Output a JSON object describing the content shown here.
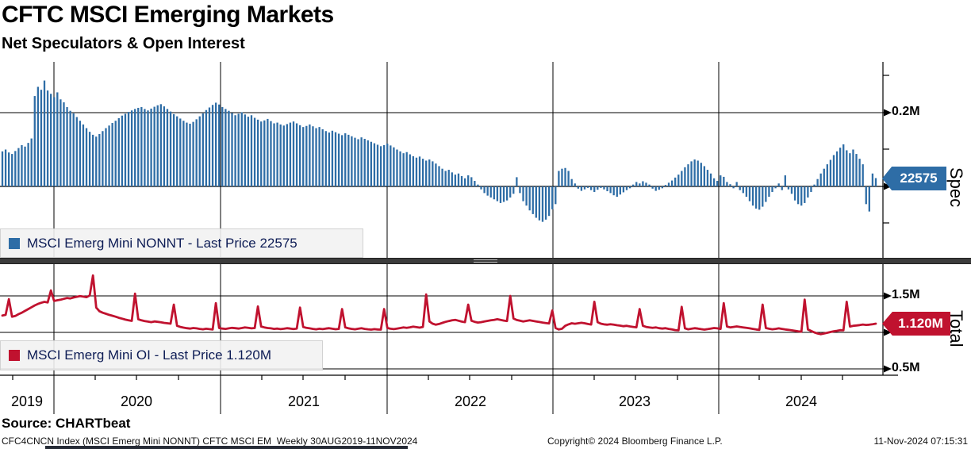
{
  "title": "CFTC MSCI Emerging Markets",
  "subtitle": "Net Speculators & Open Interest",
  "source_line": "Source: CHARTbeat",
  "footer": {
    "left": "CFC4CNCN Index (MSCI Emerg Mini NONNT) CFTC MSCI EM  Weekly 30AUG2019-11NOV2024",
    "center": "Copyright© 2024 Bloomberg Finance L.P.",
    "right": "11-Nov-2024 07:15:31"
  },
  "top_panel": {
    "legend": "MSCI Emerg Mini NONNT - Last Price 22575",
    "axis_label": "Spec",
    "last_price_tag": "22575",
    "last_price_value": 22575,
    "y_ticks": [
      {
        "label": "0.2M",
        "value_k": 200
      },
      {
        "label": "0",
        "value_k": 0
      }
    ]
  },
  "bottom_panel": {
    "legend": "MSCI Emerg Mini OI - Last Price 1.120M",
    "axis_label": "Total",
    "last_price_tag": "1.120M",
    "last_price_value": 1120000,
    "y_ticks": [
      {
        "label": "1.5M",
        "value_k": 1500
      },
      {
        "label": "1M",
        "value_k": 1000
      },
      {
        "label": "0.5M",
        "value_k": 500
      }
    ]
  },
  "x_axis": {
    "year_labels": [
      "2019",
      "2020",
      "2021",
      "2022",
      "2023",
      "2024"
    ],
    "range": "30AUG2019 - 11NOV2024",
    "frequency": "weekly"
  },
  "chart_data": [
    {
      "type": "bar",
      "name": "MSCI Emerg Mini NONNT",
      "color": "#2E6DA6",
      "unit": "contracts, thousands",
      "x_start": "2019-08-30",
      "x_end": "2024-11-11",
      "frequency": "weekly",
      "ylim_k": [
        -190,
        335
      ],
      "gridlines_k": [
        200,
        0
      ],
      "last_value_k": 22.575,
      "values_k": [
        95,
        100,
        92,
        88,
        96,
        104,
        112,
        108,
        118,
        130,
        245,
        270,
        262,
        287,
        260,
        251,
        242,
        255,
        236,
        228,
        215,
        205,
        198,
        188,
        178,
        168,
        158,
        148,
        140,
        135,
        142,
        150,
        158,
        165,
        172,
        178,
        185,
        192,
        197,
        202,
        206,
        210,
        213,
        215,
        210,
        206,
        211,
        216,
        220,
        223,
        217,
        210,
        203,
        196,
        190,
        184,
        178,
        173,
        170,
        175,
        182,
        190,
        198,
        207,
        214,
        221,
        227,
        222,
        215,
        210,
        205,
        199,
        193,
        197,
        201,
        195,
        189,
        193,
        186,
        181,
        176,
        179,
        183,
        177,
        171,
        173,
        168,
        165,
        169,
        173,
        176,
        171,
        166,
        161,
        164,
        168,
        163,
        158,
        161,
        155,
        150,
        146,
        151,
        147,
        143,
        139,
        144,
        140,
        136,
        132,
        128,
        133,
        129,
        125,
        121,
        117,
        113,
        109,
        112,
        116,
        111,
        106,
        100,
        95,
        90,
        93,
        87,
        82,
        78,
        81,
        75,
        70,
        73,
        68,
        62,
        55,
        48,
        42,
        45,
        38,
        32,
        35,
        28,
        22,
        30,
        25,
        15,
        5,
        -8,
        -18,
        -25,
        -30,
        -35,
        -40,
        -45,
        -42,
        -38,
        -30,
        -20,
        25,
        -18,
        -40,
        -52,
        -65,
        -75,
        -85,
        -92,
        -96,
        -90,
        -80,
        -62,
        -48,
        42,
        48,
        50,
        42,
        20,
        8,
        -6,
        -12,
        -8,
        -4,
        -10,
        -15,
        -9,
        -4,
        -8,
        -13,
        -18,
        -24,
        -28,
        -22,
        -16,
        -10,
        -5,
        5,
        12,
        8,
        14,
        10,
        5,
        -6,
        -12,
        -9,
        -5,
        4,
        10,
        16,
        24,
        32,
        42,
        52,
        60,
        68,
        73,
        70,
        64,
        55,
        45,
        35,
        22,
        15,
        30,
        26,
        12,
        6,
        -5,
        12,
        -10,
        -18,
        -28,
        -40,
        -52,
        -60,
        -63,
        -55,
        -42,
        -28,
        -15,
        -5,
        8,
        -10,
        30,
        -8,
        -20,
        -38,
        -48,
        -52,
        -45,
        -30,
        -15,
        5,
        20,
        35,
        48,
        60,
        72,
        85,
        95,
        105,
        114,
        98,
        90,
        100,
        88,
        75,
        60,
        -48,
        -68,
        35,
        22.575
      ]
    },
    {
      "type": "line",
      "name": "MSCI Emerg Mini OI",
      "color": "#C0122F",
      "unit": "contracts, thousands",
      "x_start": "2019-08-30",
      "x_end": "2024-11-11",
      "frequency": "weekly",
      "ylim_k": [
        420,
        1930
      ],
      "gridlines_k": [
        1500,
        1000,
        500
      ],
      "last_value_k": 1120,
      "values_k": [
        1230,
        1240,
        1455,
        1215,
        1225,
        1250,
        1270,
        1295,
        1320,
        1345,
        1370,
        1390,
        1405,
        1418,
        1410,
        1575,
        1430,
        1440,
        1448,
        1460,
        1472,
        1465,
        1478,
        1488,
        1498,
        1490,
        1483,
        1505,
        1780,
        1340,
        1290,
        1270,
        1255,
        1240,
        1228,
        1215,
        1200,
        1188,
        1175,
        1165,
        1158,
        1530,
        1180,
        1165,
        1155,
        1148,
        1140,
        1150,
        1145,
        1138,
        1130,
        1125,
        1120,
        1380,
        1090,
        1075,
        1065,
        1058,
        1052,
        1060,
        1055,
        1048,
        1042,
        1050,
        1045,
        1040,
        1400,
        1060,
        1052,
        1048,
        1055,
        1062,
        1058,
        1052,
        1060,
        1068,
        1062,
        1055,
        1060,
        1355,
        1080,
        1068,
        1060,
        1055,
        1048,
        1052,
        1045,
        1050,
        1058,
        1052,
        1046,
        1052,
        1340,
        1075,
        1062,
        1055,
        1048,
        1042,
        1050,
        1045,
        1052,
        1058,
        1050,
        1044,
        1048,
        1320,
        1068,
        1055,
        1048,
        1042,
        1050,
        1056,
        1048,
        1042,
        1038,
        1045,
        1040,
        1038,
        1320,
        1060,
        1050,
        1045,
        1052,
        1060,
        1068,
        1062,
        1070,
        1078,
        1072,
        1065,
        1075,
        1520,
        1150,
        1120,
        1105,
        1115,
        1130,
        1145,
        1155,
        1165,
        1172,
        1160,
        1148,
        1140,
        1380,
        1160,
        1145,
        1135,
        1140,
        1150,
        1158,
        1165,
        1172,
        1180,
        1172,
        1162,
        1155,
        1500,
        1190,
        1170,
        1160,
        1150,
        1158,
        1165,
        1158,
        1150,
        1142,
        1135,
        1128,
        1122,
        1300,
        1060,
        1040,
        1050,
        1090,
        1110,
        1125,
        1118,
        1125,
        1132,
        1125,
        1115,
        1108,
        1420,
        1140,
        1120,
        1110,
        1105,
        1112,
        1105,
        1098,
        1092,
        1085,
        1090,
        1082,
        1075,
        1070,
        1320,
        1090,
        1075,
        1068,
        1062,
        1068,
        1058,
        1052,
        1058,
        1048,
        1040,
        1032,
        1028,
        1350,
        1055,
        1042,
        1050,
        1058,
        1052,
        1045,
        1038,
        1045,
        1052,
        1060,
        1055,
        1048,
        1400,
        1080,
        1068,
        1075,
        1082,
        1075,
        1068,
        1062,
        1055,
        1048,
        1040,
        1035,
        1380,
        1060,
        1050,
        1042,
        1048,
        1055,
        1048,
        1040,
        1035,
        1028,
        1022,
        1015,
        1010,
        1450,
        1040,
        1020,
        1000,
        985,
        975,
        985,
        995,
        1005,
        1015,
        1022,
        1030,
        1028,
        1420,
        1080,
        1090,
        1095,
        1100,
        1108,
        1102,
        1105,
        1112,
        1120
      ]
    }
  ]
}
